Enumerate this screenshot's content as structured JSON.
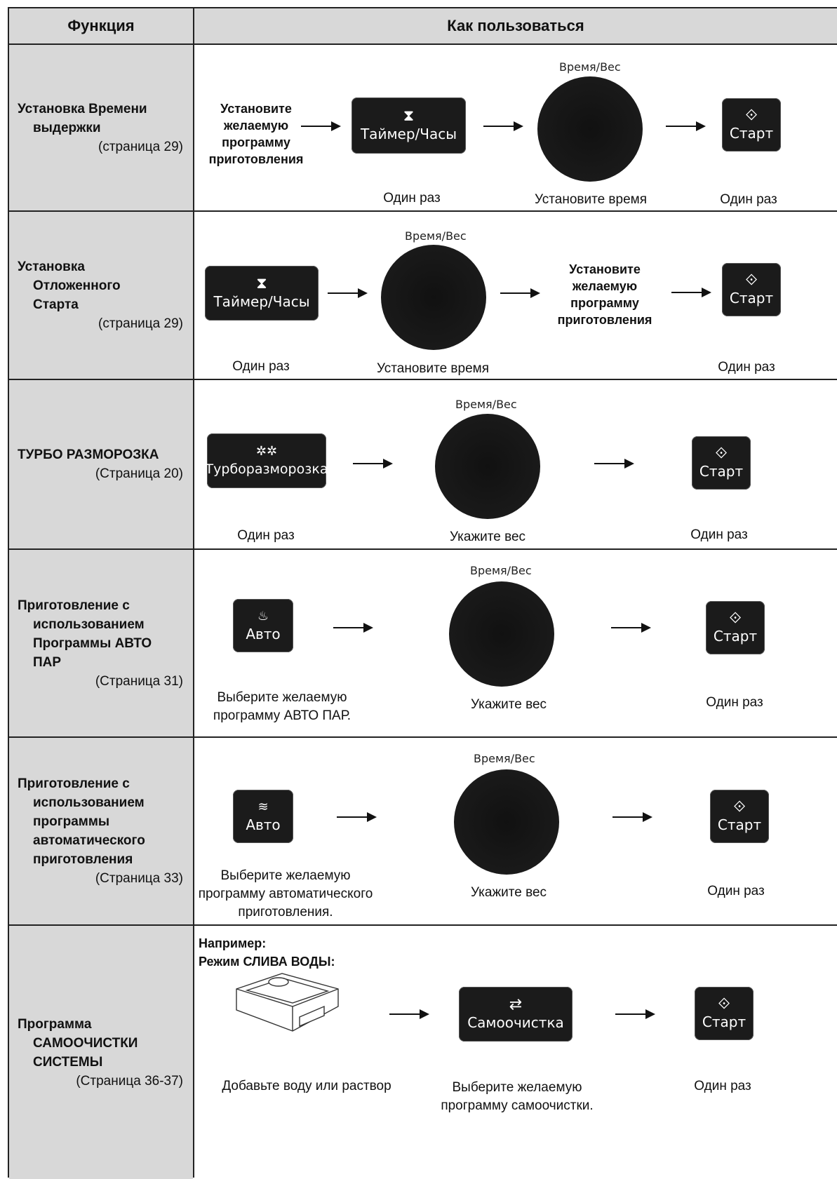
{
  "header": {
    "col_function": "Функция",
    "col_howto": "Как пользоваться"
  },
  "common": {
    "dial_label": "Время/Вес",
    "start_label": "Старт",
    "once": "Один раз",
    "set_time": "Установите время",
    "set_weight": "Укажите вес",
    "choose_program": [
      "Установите",
      "желаемую",
      "программу",
      "приготовления"
    ]
  },
  "rows": [
    {
      "title": [
        "Установка Времени",
        "выдержки"
      ],
      "page": "(страница 29)",
      "button_label": "Таймер/Часы"
    },
    {
      "title": [
        "Установка",
        "Отложенного",
        "Старта"
      ],
      "page": "(страница 29)",
      "button_label": "Таймер/Часы"
    },
    {
      "title": [
        "ТУРБО РАЗМОРОЗКА"
      ],
      "page": "(Страница 20)",
      "button_label": "Турборазморозка"
    },
    {
      "title": [
        "Приготовление с",
        "использованием",
        "Программы АВТО",
        "ПАР"
      ],
      "page": "(Страница 31)",
      "button_label": "Авто",
      "caption": [
        "Выберите желаемую",
        "программу АВТО ПАР."
      ]
    },
    {
      "title": [
        "Приготовление с",
        "использованием",
        "программы",
        "автоматического",
        "приготовления"
      ],
      "page": "(Страница 33)",
      "button_label": "Авто",
      "caption": [
        "Выберите желаемую",
        "программу автоматического",
        "приготовления."
      ]
    },
    {
      "title": [
        "Программа",
        "САМООЧИСТКИ",
        "СИСТЕМЫ"
      ],
      "page": "(Страница 36-37)",
      "button_label": "Самоочистка",
      "example": [
        "Например:",
        "Режим СЛИВА ВОДЫ:"
      ],
      "caption_water": "Добавьте воду или раствор",
      "caption_program": [
        "Выберите желаемую",
        "программу самоочистки."
      ]
    }
  ]
}
